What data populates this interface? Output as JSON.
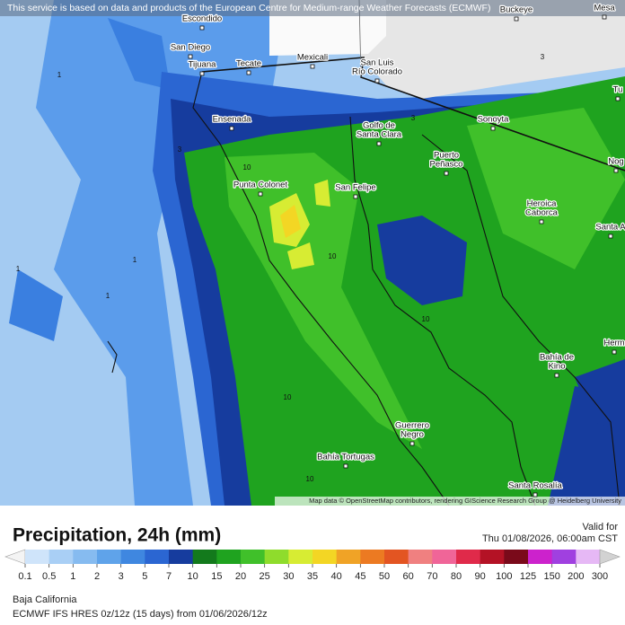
{
  "banner": "This service is based on data and products of the European Centre for Medium-range Weather Forecasts (ECMWF)",
  "attribution": "Map data © OpenStreetMap contributors, rendering GIScience Research Group @ Heidelberg University",
  "cities": [
    [
      "Escondido"
    ],
    [
      "San Diego"
    ],
    [
      "Tijuana"
    ],
    [
      "Tecate"
    ],
    [
      "Mexicali"
    ],
    [
      "San Luis",
      "Río Colorado"
    ],
    [
      "Buckeye"
    ],
    [
      "Mesa"
    ],
    [
      "Ensenada"
    ],
    [
      "Golfo de",
      "Santa Clara"
    ],
    [
      "Sonoyta"
    ],
    [
      "Puerto",
      "Peñasco"
    ],
    [
      "Punta Colonet"
    ],
    [
      "San Felipe"
    ],
    [
      "Heroica",
      "Caborca"
    ],
    [
      "Santa A"
    ],
    [
      "Tu"
    ],
    [
      "Nog"
    ],
    [
      "Herm"
    ],
    [
      "Bahía de",
      "Kino"
    ],
    [
      "Guerrero",
      "Negro"
    ],
    [
      "Bahía Tortugas"
    ],
    [
      "Santa Rosalía"
    ]
  ],
  "contour_labels": [
    1,
    3,
    3,
    10,
    1,
    1,
    1,
    10,
    10,
    10,
    10,
    3
  ],
  "legend": {
    "title": "Precipitation, 24h (mm)",
    "labels": [
      0.1,
      0.5,
      1,
      2,
      3,
      5,
      7,
      10,
      15,
      20,
      25,
      30,
      35,
      40,
      45,
      50,
      60,
      70,
      80,
      90,
      100,
      125,
      150,
      200,
      300
    ],
    "colors": [
      "#f4f4f4",
      "#cfe4fa",
      "#a9cff5",
      "#86bbf0",
      "#5fa3ea",
      "#3f87e0",
      "#2b66d2",
      "#163c9e",
      "#137a1c",
      "#1fa31f",
      "#40c02a",
      "#8fdc2c",
      "#d7ec33",
      "#f3d624",
      "#f0a326",
      "#ec7a22",
      "#e35522",
      "#f08080",
      "#f06598",
      "#e02a4a",
      "#b41225",
      "#7a0a1a",
      "#cc22cc",
      "#a040e0",
      "#e6b8f5",
      "#d2d2d2"
    ]
  },
  "valid_label": "Valid for",
  "valid_time": "Thu 01/08/2026, 06:00am CST",
  "region": "Baja California",
  "model_info": "ECMWF IFS HRES 0z/12z (15 days) from 01/06/2026/12z"
}
